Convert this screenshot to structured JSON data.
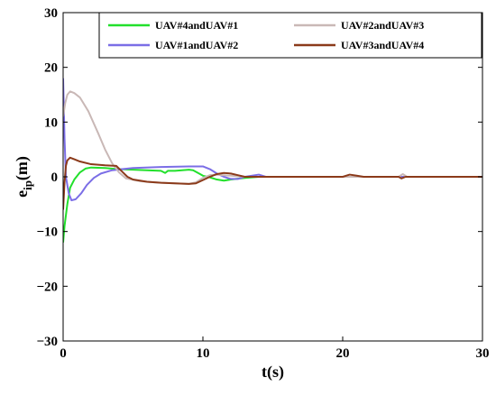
{
  "chart_data": {
    "type": "line",
    "title": "",
    "xlabel": "t(s)",
    "ylabel_main": "e",
    "ylabel_sub": "ip",
    "ylabel_unit": "(m)",
    "xlim": [
      0,
      30
    ],
    "ylim": [
      -30,
      30
    ],
    "xticks": [
      0,
      10,
      20,
      30
    ],
    "yticks": [
      -30,
      -20,
      -10,
      0,
      10,
      20,
      30
    ],
    "grid": false,
    "legend_position": "top-right",
    "series": [
      {
        "name": "UAV#4andUAV#1",
        "color": "#22e02c",
        "points": [
          [
            0,
            -12
          ],
          [
            0.1,
            -9
          ],
          [
            0.3,
            -5
          ],
          [
            0.5,
            -2
          ],
          [
            0.8,
            -0.5
          ],
          [
            1.2,
            0.8
          ],
          [
            1.6,
            1.5
          ],
          [
            2,
            1.7
          ],
          [
            3,
            1.6
          ],
          [
            4,
            1.4
          ],
          [
            5,
            1.3
          ],
          [
            6,
            1.2
          ],
          [
            7,
            1.1
          ],
          [
            7.3,
            0.7
          ],
          [
            7.5,
            1.1
          ],
          [
            8,
            1.1
          ],
          [
            9,
            1.3
          ],
          [
            9.3,
            1.2
          ],
          [
            9.8,
            0.5
          ],
          [
            10,
            0.2
          ],
          [
            10.5,
            -0.1
          ],
          [
            11,
            -0.5
          ],
          [
            11.5,
            -0.7
          ],
          [
            12,
            -0.5
          ],
          [
            13,
            -0.2
          ],
          [
            14,
            0
          ],
          [
            30,
            0
          ]
        ]
      },
      {
        "name": "UAV#1andUAV#2",
        "color": "#7b6ee6",
        "points": [
          [
            0,
            18
          ],
          [
            0.1,
            7
          ],
          [
            0.2,
            0
          ],
          [
            0.4,
            -3
          ],
          [
            0.6,
            -4.3
          ],
          [
            0.9,
            -4.1
          ],
          [
            1.3,
            -3
          ],
          [
            1.7,
            -1.5
          ],
          [
            2.2,
            -0.2
          ],
          [
            2.7,
            0.6
          ],
          [
            3.5,
            1.2
          ],
          [
            5,
            1.6
          ],
          [
            7,
            1.8
          ],
          [
            9,
            1.9
          ],
          [
            10,
            1.9
          ],
          [
            10.5,
            1.4
          ],
          [
            11,
            0.6
          ],
          [
            11.5,
            0
          ],
          [
            12,
            -0.4
          ],
          [
            12.5,
            -0.4
          ],
          [
            13,
            0
          ],
          [
            14,
            0.4
          ],
          [
            14.5,
            0
          ],
          [
            30,
            0
          ]
        ]
      },
      {
        "name": "UAV#2andUAV#3",
        "color": "#c9b8b6",
        "points": [
          [
            0,
            11
          ],
          [
            0.15,
            13.5
          ],
          [
            0.3,
            15
          ],
          [
            0.5,
            15.6
          ],
          [
            0.8,
            15.3
          ],
          [
            1.2,
            14.5
          ],
          [
            1.8,
            12
          ],
          [
            2.5,
            8
          ],
          [
            3,
            5
          ],
          [
            3.5,
            2.5
          ],
          [
            4,
            0.8
          ],
          [
            4.5,
            -0.3
          ],
          [
            5.5,
            -0.8
          ],
          [
            6.5,
            -1
          ],
          [
            8,
            -1.2
          ],
          [
            9,
            -1.3
          ],
          [
            9.5,
            -1
          ],
          [
            10,
            -0.2
          ],
          [
            10.5,
            0.3
          ],
          [
            11,
            0.4
          ],
          [
            12,
            0.2
          ],
          [
            13,
            0
          ],
          [
            24,
            0
          ],
          [
            24.3,
            0.5
          ],
          [
            24.6,
            0
          ],
          [
            30,
            0
          ]
        ]
      },
      {
        "name": "UAV#3andUAV#4",
        "color": "#8b3a1a",
        "points": [
          [
            0,
            -6
          ],
          [
            0.1,
            -1
          ],
          [
            0.2,
            2
          ],
          [
            0.3,
            3
          ],
          [
            0.5,
            3.5
          ],
          [
            0.8,
            3.2
          ],
          [
            1.2,
            2.8
          ],
          [
            2,
            2.3
          ],
          [
            3,
            2.1
          ],
          [
            3.8,
            2.0
          ],
          [
            4.2,
            1.0
          ],
          [
            4.6,
            0
          ],
          [
            5,
            -0.5
          ],
          [
            6,
            -0.9
          ],
          [
            7,
            -1.1
          ],
          [
            8,
            -1.2
          ],
          [
            9,
            -1.3
          ],
          [
            9.5,
            -1.2
          ],
          [
            10,
            -0.6
          ],
          [
            10.5,
            0
          ],
          [
            11,
            0.5
          ],
          [
            11.5,
            0.7
          ],
          [
            12,
            0.6
          ],
          [
            12.5,
            0.3
          ],
          [
            13,
            0
          ],
          [
            20,
            0
          ],
          [
            20.5,
            0.4
          ],
          [
            21,
            0.2
          ],
          [
            21.5,
            0
          ],
          [
            24,
            0
          ],
          [
            24.2,
            -0.3
          ],
          [
            24.5,
            0
          ],
          [
            30,
            0
          ]
        ]
      }
    ]
  }
}
